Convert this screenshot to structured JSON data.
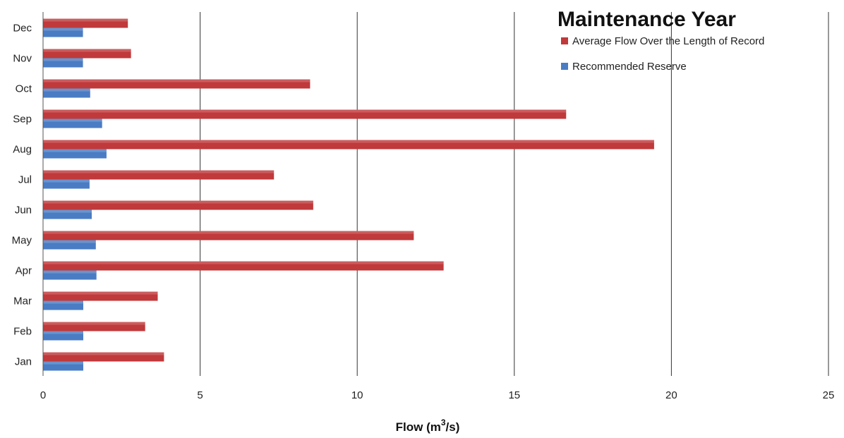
{
  "chart_data": {
    "type": "bar",
    "orientation": "horizontal",
    "title": "Maintenance Year",
    "xlabel": "Flow (m",
    "xlabel_sup": "3",
    "xlabel_suffix": "/s)",
    "xlim": [
      0,
      25
    ],
    "xticks": [
      0,
      5,
      10,
      15,
      20,
      25
    ],
    "grid": "vertical",
    "legend_position": "top-right",
    "categories": [
      "Jan",
      "Feb",
      "Mar",
      "Apr",
      "May",
      "Jun",
      "Jul",
      "Aug",
      "Sep",
      "Oct",
      "Nov",
      "Dec"
    ],
    "series": [
      {
        "name": "Average Flow Over the Length of Record",
        "color": "#c0393b",
        "values": [
          3.85,
          3.25,
          3.65,
          12.75,
          11.8,
          8.6,
          7.35,
          19.45,
          16.65,
          8.5,
          2.8,
          2.7
        ]
      },
      {
        "name": "Recommended Reserve",
        "color": "#4a7cc4",
        "values": [
          1.28,
          1.28,
          1.28,
          1.7,
          1.68,
          1.55,
          1.48,
          2.02,
          1.88,
          1.5,
          1.27,
          1.27
        ]
      }
    ]
  }
}
